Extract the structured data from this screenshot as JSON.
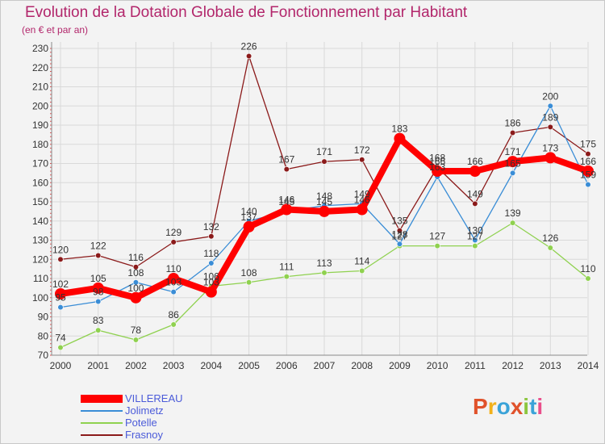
{
  "header": {
    "title": "Evolution de la Dotation Globale de Fonctionnement par Habitant",
    "subtitle": "(en € et par an)"
  },
  "brand": {
    "text": "Proxiti",
    "colors": [
      "#e0522b",
      "#f2b11a",
      "#3aa3d8",
      "#e0522b",
      "#8cc63f",
      "#3aa3d8",
      "#e94e8b"
    ]
  },
  "chart_data": {
    "type": "line",
    "x": [
      "2000",
      "2001",
      "2002",
      "2003",
      "2004",
      "2005",
      "2006",
      "2007",
      "2008",
      "2009",
      "2010",
      "2011",
      "2012",
      "2013",
      "2014"
    ],
    "ylim": [
      70,
      230
    ],
    "yticks": [
      70,
      80,
      90,
      100,
      110,
      120,
      130,
      140,
      150,
      160,
      170,
      180,
      190,
      200,
      210,
      220,
      230
    ],
    "grid": true,
    "legend_position": "bottom-left",
    "series": [
      {
        "name": "Frasnoy",
        "color": "#8b1a1a",
        "values": [
          120,
          122,
          116,
          129,
          132,
          226,
          167,
          171,
          172,
          135,
          168,
          149,
          186,
          189,
          175
        ]
      },
      {
        "name": "Potelle",
        "color": "#8fd14f",
        "values": [
          74,
          83,
          78,
          86,
          106,
          108,
          111,
          113,
          114,
          127,
          127,
          127,
          139,
          126,
          110
        ]
      },
      {
        "name": "Jolimetz",
        "color": "#3a8dd6",
        "values": [
          95,
          98,
          108,
          103,
          118,
          140,
          145,
          148,
          149,
          128,
          163,
          130,
          165,
          200,
          159
        ]
      },
      {
        "name": "VILLEREAU",
        "color": "#ff0000",
        "values": [
          102,
          105,
          100,
          110,
          103,
          137,
          146,
          145,
          146,
          183,
          166,
          166,
          171,
          173,
          166
        ]
      }
    ],
    "label_order": [
      "Frasnoy",
      "Potelle",
      "Jolimetz",
      "VILLEREAU"
    ]
  },
  "legend": {
    "items": [
      {
        "label": "VILLEREAU",
        "color": "#ff0000"
      },
      {
        "label": "Jolimetz",
        "color": "#3a8dd6"
      },
      {
        "label": "Potelle",
        "color": "#8fd14f"
      },
      {
        "label": "Frasnoy",
        "color": "#8b1a1a"
      }
    ]
  }
}
